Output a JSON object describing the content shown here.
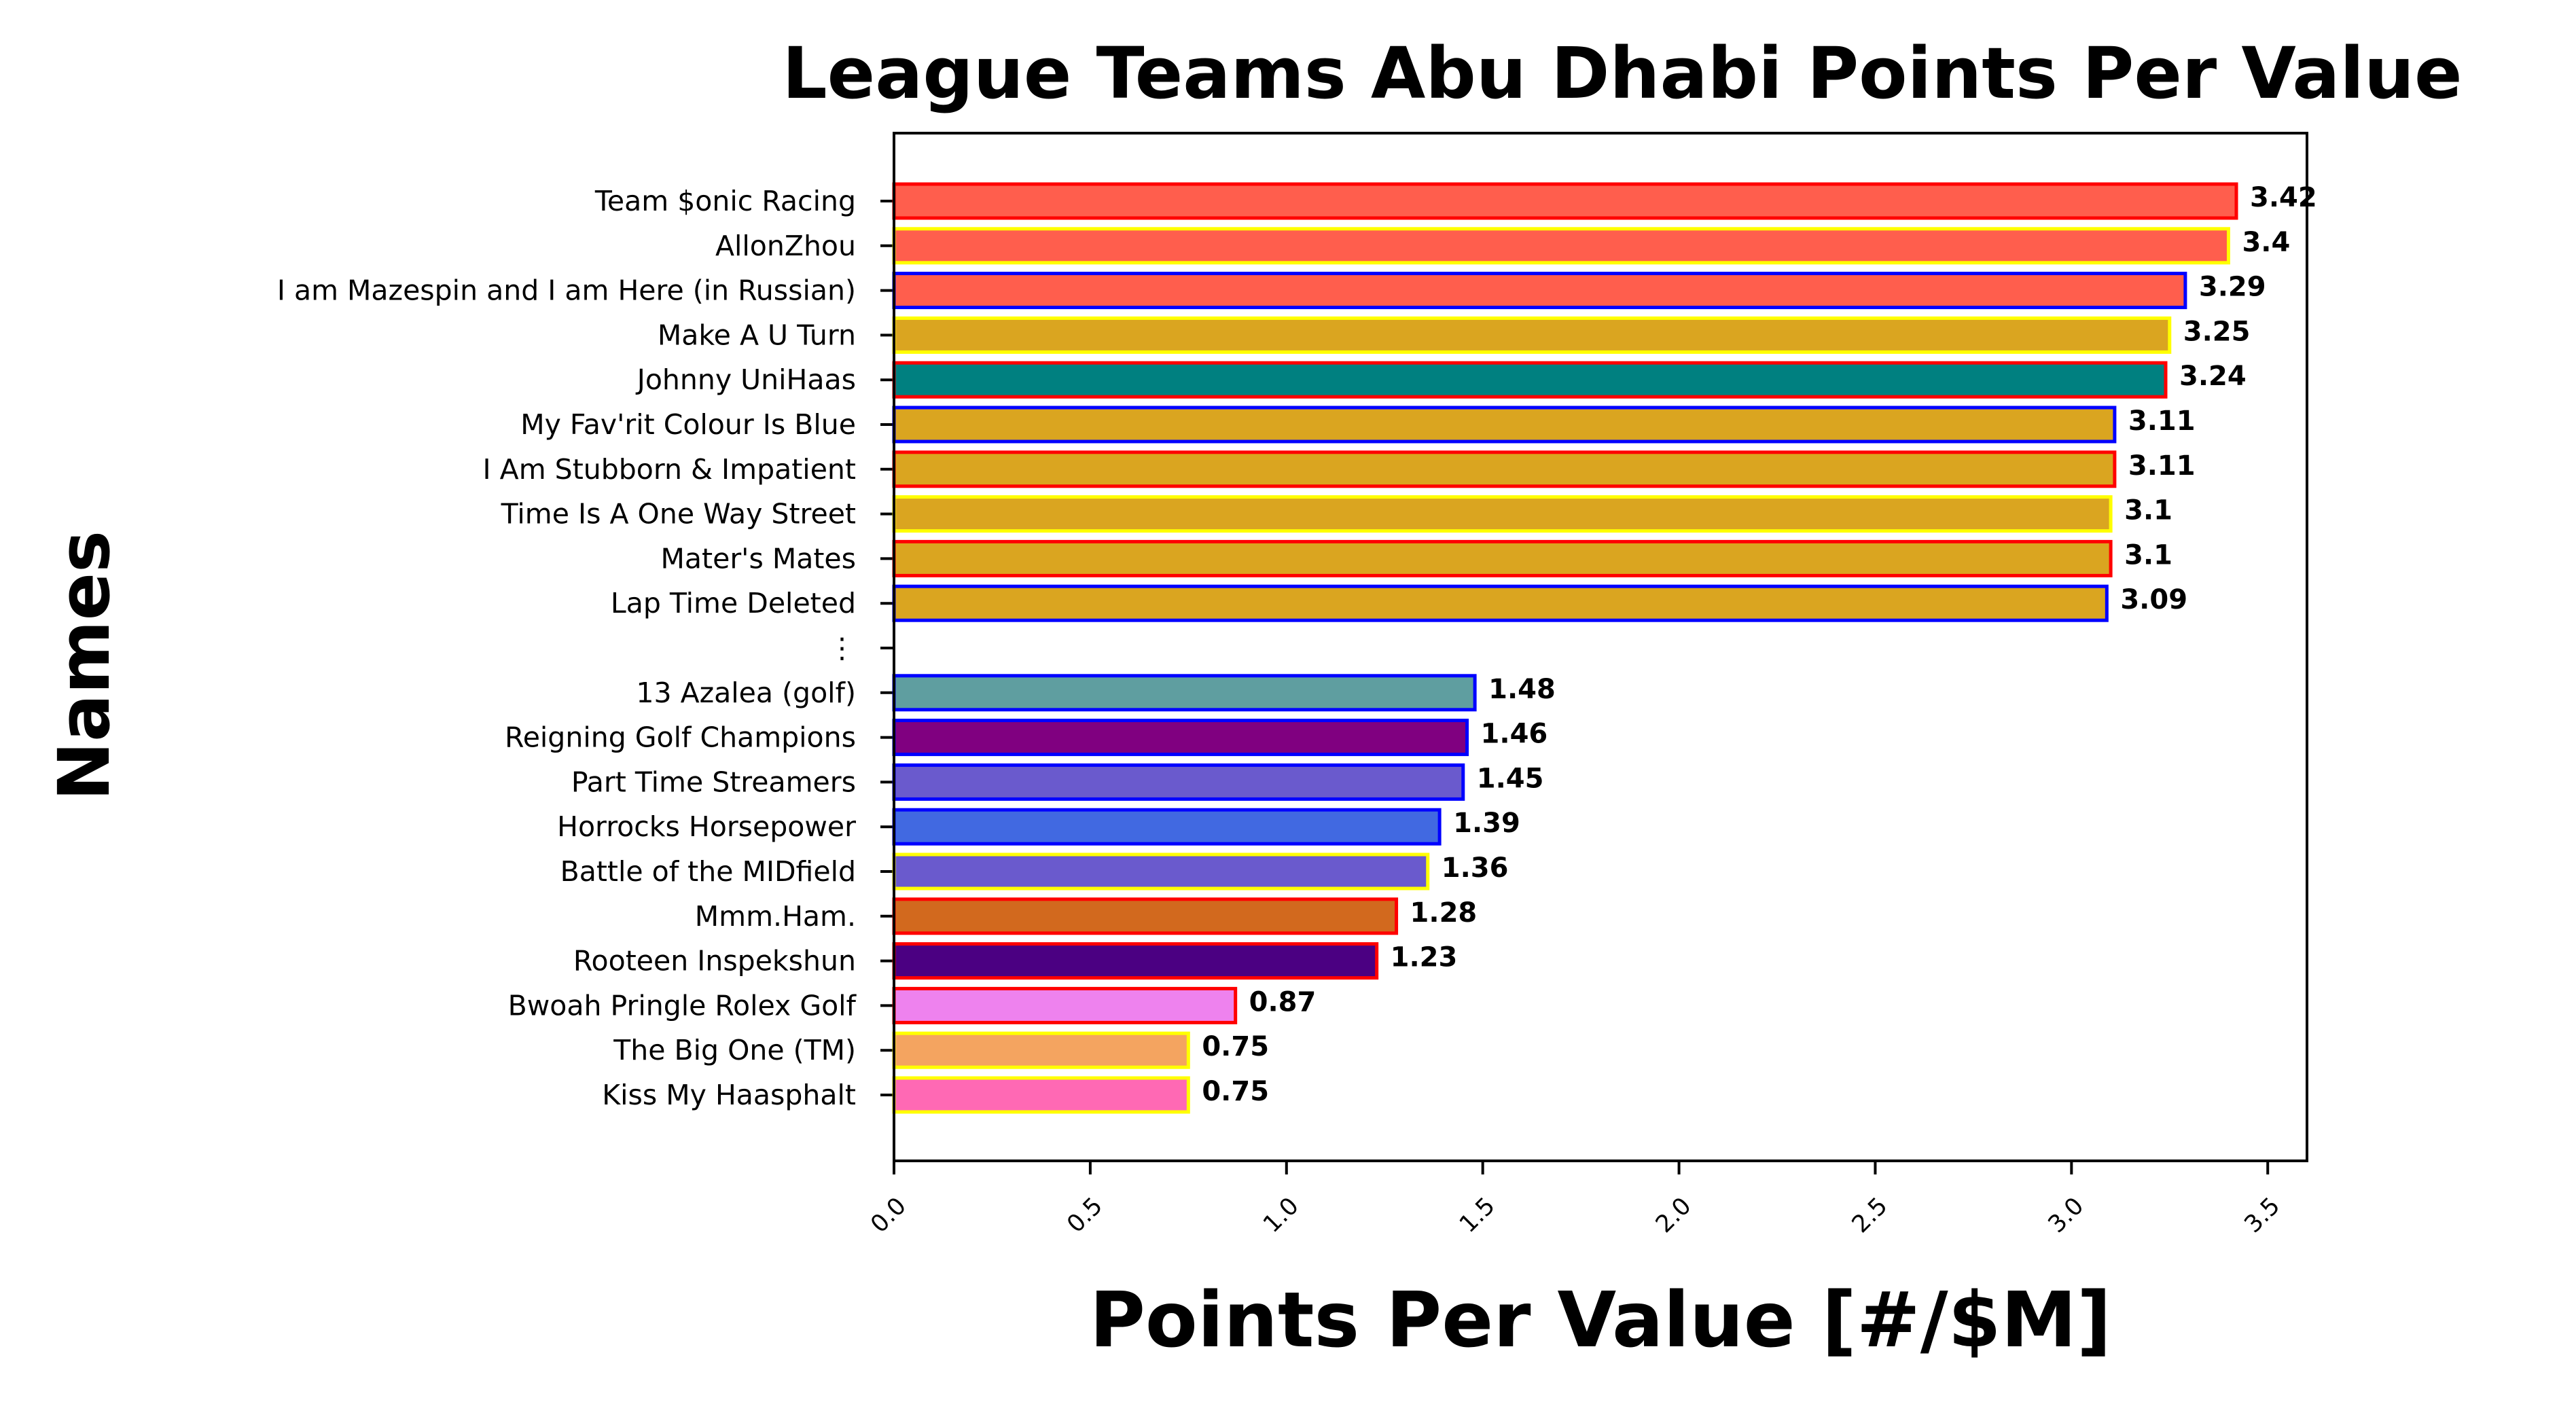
{
  "chart_data": {
    "type": "bar",
    "orientation": "horizontal",
    "title": "League Teams Abu Dhabi Points Per Value",
    "xlabel": "Points Per Value [#/$M]",
    "ylabel": "Names",
    "xlim": [
      0,
      3.6
    ],
    "xticks": [
      "0.0",
      "0.5",
      "1.0",
      "1.5",
      "2.0",
      "2.5",
      "3.0",
      "3.5"
    ],
    "grid": false,
    "bars": [
      {
        "name": "Team $onic Racing",
        "value": 3.42,
        "label": "3.42",
        "fill": "#ff5e4d",
        "edge": "#ff0000"
      },
      {
        "name": "AllonZhou",
        "value": 3.4,
        "label": "3.4",
        "fill": "#ff5e4d",
        "edge": "#ffff00"
      },
      {
        "name": "I am Mazespin and I am Here (in Russian)",
        "value": 3.29,
        "label": "3.29",
        "fill": "#ff5e4d",
        "edge": "#0000ff"
      },
      {
        "name": "Make A U Turn",
        "value": 3.25,
        "label": "3.25",
        "fill": "#daa520",
        "edge": "#ffff00"
      },
      {
        "name": "Johnny UniHaas",
        "value": 3.24,
        "label": "3.24",
        "fill": "#008080",
        "edge": "#ff0000"
      },
      {
        "name": "My Fav'rit Colour Is Blue",
        "value": 3.11,
        "label": "3.11",
        "fill": "#daa520",
        "edge": "#0000ff"
      },
      {
        "name": "I Am Stubborn & Impatient",
        "value": 3.11,
        "label": "3.11",
        "fill": "#daa520",
        "edge": "#ff0000"
      },
      {
        "name": "Time Is A One Way Street",
        "value": 3.1,
        "label": "3.1",
        "fill": "#daa520",
        "edge": "#ffff00"
      },
      {
        "name": "Mater's Mates",
        "value": 3.1,
        "label": "3.1",
        "fill": "#daa520",
        "edge": "#ff0000"
      },
      {
        "name": "Lap Time Deleted",
        "value": 3.09,
        "label": "3.09",
        "fill": "#daa520",
        "edge": "#0000ff"
      },
      {
        "name": "⋮",
        "value": null,
        "label": "",
        "fill": "",
        "edge": ""
      },
      {
        "name": "13 Azalea (golf)",
        "value": 1.48,
        "label": "1.48",
        "fill": "#5f9ea0",
        "edge": "#0000ff"
      },
      {
        "name": "Reigning Golf Champions",
        "value": 1.46,
        "label": "1.46",
        "fill": "#800080",
        "edge": "#0000ff"
      },
      {
        "name": "Part Time Streamers",
        "value": 1.45,
        "label": "1.45",
        "fill": "#6a5acd",
        "edge": "#0000ff"
      },
      {
        "name": "Horrocks Horsepower",
        "value": 1.39,
        "label": "1.39",
        "fill": "#4169e1",
        "edge": "#0000ff"
      },
      {
        "name": "Battle of the MIDfield",
        "value": 1.36,
        "label": "1.36",
        "fill": "#6a5acd",
        "edge": "#ffff00"
      },
      {
        "name": "Mmm.Ham.",
        "value": 1.28,
        "label": "1.28",
        "fill": "#d2691e",
        "edge": "#ff0000"
      },
      {
        "name": "Rooteen Inspekshun",
        "value": 1.23,
        "label": "1.23",
        "fill": "#4b0082",
        "edge": "#ff0000"
      },
      {
        "name": "Bwoah Pringle Rolex Golf",
        "value": 0.87,
        "label": "0.87",
        "fill": "#ee82ee",
        "edge": "#ff0000"
      },
      {
        "name": "The Big One (TM)",
        "value": 0.75,
        "label": "0.75",
        "fill": "#f4a460",
        "edge": "#ffff00"
      },
      {
        "name": "Kiss My Haasphalt",
        "value": 0.75,
        "label": "0.75",
        "fill": "#ff69b4",
        "edge": "#ffff00"
      }
    ]
  }
}
